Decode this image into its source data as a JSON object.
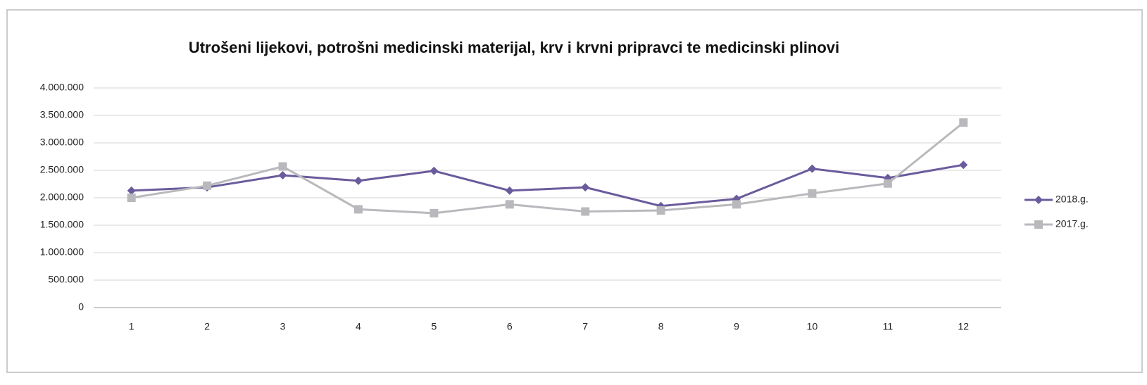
{
  "chart_data": {
    "type": "line",
    "title": "Utrošeni lijekovi, potrošni medicinski materijal, krv i krvni pripravci te medicinski plinovi",
    "categories": [
      "1",
      "2",
      "3",
      "4",
      "5",
      "6",
      "7",
      "8",
      "9",
      "10",
      "11",
      "12"
    ],
    "series": [
      {
        "name": "2018.g.",
        "color": "#6a5b9c",
        "marker": "diamond",
        "values": [
          2130000,
          2190000,
          2410000,
          2310000,
          2490000,
          2130000,
          2190000,
          1850000,
          1980000,
          2530000,
          2360000,
          2600000
        ]
      },
      {
        "name": "2017.g.",
        "color": "#b9b9bd",
        "marker": "square",
        "values": [
          2000000,
          2220000,
          2570000,
          1790000,
          1720000,
          1880000,
          1750000,
          1770000,
          1880000,
          2080000,
          2260000,
          3370000
        ]
      }
    ],
    "ylim": [
      0,
      4000000
    ],
    "yticks": [
      0,
      {
        "value": 500000,
        "label": "500.000"
      },
      {
        "value": 1000000,
        "label": "1.000.000"
      },
      {
        "value": 1500000,
        "label": "1.500.000"
      },
      {
        "value": 2000000,
        "label": "2.000.000"
      },
      {
        "value": 2500000,
        "label": "2.500.000"
      },
      {
        "value": 3000000,
        "label": "3.000.000"
      },
      {
        "value": 3500000,
        "label": "3.500.000"
      },
      {
        "value": 4000000,
        "label": "4.000.000"
      }
    ],
    "grid": true,
    "legend": "right"
  }
}
